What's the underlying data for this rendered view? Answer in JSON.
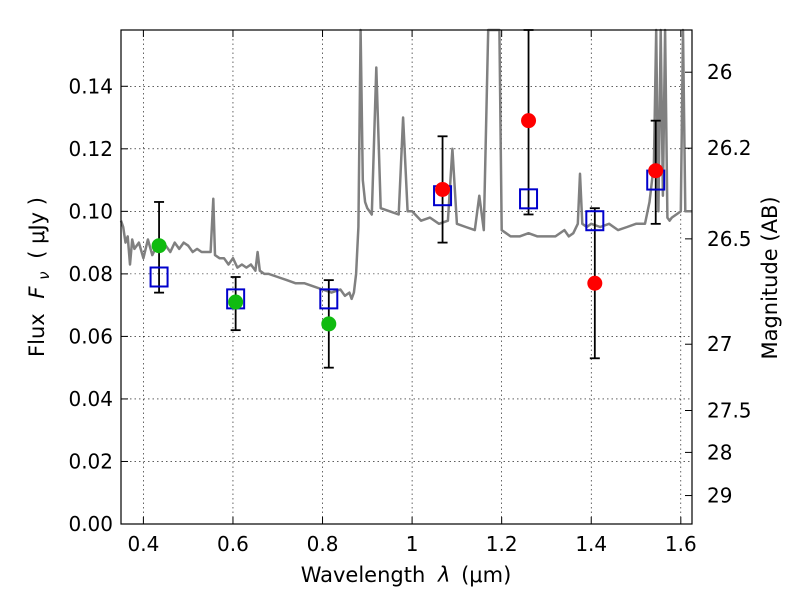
{
  "chart_data": {
    "type": "scatter",
    "xlabel_text": "Wavelength",
    "xlabel_symbol": "λ",
    "xlabel_unit": "(μm)",
    "ylabel_text": "Flux",
    "ylabel_symbol": "F",
    "ylabel_subscript": "ν",
    "ylabel_unit": "( μJy )",
    "y2label": "Magnitude (AB)",
    "xlim": [
      0.35,
      1.625
    ],
    "ylim": [
      0.0,
      0.158
    ],
    "grid": true,
    "x_ticks": [
      {
        "value": 0.4,
        "label": "0.4"
      },
      {
        "value": 0.6,
        "label": "0.6"
      },
      {
        "value": 0.8,
        "label": "0.8"
      },
      {
        "value": 1.0,
        "label": "1"
      },
      {
        "value": 1.2,
        "label": "1.2"
      },
      {
        "value": 1.4,
        "label": "1.4"
      },
      {
        "value": 1.6,
        "label": "1.6"
      }
    ],
    "y_ticks": [
      {
        "value": 0.0,
        "label": "0.00"
      },
      {
        "value": 0.02,
        "label": "0.02"
      },
      {
        "value": 0.04,
        "label": "0.04"
      },
      {
        "value": 0.06,
        "label": "0.06"
      },
      {
        "value": 0.08,
        "label": "0.08"
      },
      {
        "value": 0.1,
        "label": "0.10"
      },
      {
        "value": 0.12,
        "label": "0.12"
      },
      {
        "value": 0.14,
        "label": "0.14"
      }
    ],
    "y2_ticks": [
      {
        "label": "26",
        "flux": 0.1445
      },
      {
        "label": "26.2",
        "flux": 0.1202
      },
      {
        "label": "26.5",
        "flux": 0.0912
      },
      {
        "label": "27",
        "flux": 0.0575
      },
      {
        "label": "27.5",
        "flux": 0.0363
      },
      {
        "label": "28",
        "flux": 0.0229
      },
      {
        "label": "29",
        "flux": 0.0091
      }
    ],
    "series": [
      {
        "name": "model SED",
        "type": "line",
        "color": "#808080",
        "x": [
          0.35,
          0.355,
          0.36,
          0.365,
          0.37,
          0.375,
          0.38,
          0.39,
          0.4,
          0.41,
          0.42,
          0.43,
          0.44,
          0.45,
          0.46,
          0.47,
          0.48,
          0.49,
          0.5,
          0.51,
          0.52,
          0.53,
          0.54,
          0.55,
          0.556,
          0.56,
          0.57,
          0.58,
          0.59,
          0.6,
          0.61,
          0.62,
          0.63,
          0.64,
          0.65,
          0.655,
          0.66,
          0.67,
          0.68,
          0.7,
          0.72,
          0.74,
          0.76,
          0.78,
          0.8,
          0.82,
          0.84,
          0.85,
          0.86,
          0.865,
          0.87,
          0.875,
          0.88,
          0.885,
          0.89,
          0.895,
          0.9,
          0.91,
          0.92,
          0.93,
          0.95,
          0.97,
          0.98,
          0.99,
          1.0,
          1.02,
          1.04,
          1.06,
          1.08,
          1.09,
          1.1,
          1.12,
          1.14,
          1.15,
          1.16,
          1.17,
          1.175,
          1.18,
          1.185,
          1.19,
          1.195,
          1.2,
          1.21,
          1.22,
          1.24,
          1.26,
          1.28,
          1.3,
          1.32,
          1.34,
          1.35,
          1.36,
          1.37,
          1.375,
          1.38,
          1.39,
          1.4,
          1.42,
          1.44,
          1.46,
          1.48,
          1.5,
          1.52,
          1.53,
          1.54,
          1.545,
          1.55,
          1.555,
          1.56,
          1.565,
          1.57,
          1.575,
          1.58,
          1.59,
          1.6,
          1.605,
          1.61,
          1.615,
          1.625
        ],
        "y": [
          0.097,
          0.095,
          0.09,
          0.092,
          0.083,
          0.091,
          0.088,
          0.09,
          0.085,
          0.091,
          0.086,
          0.089,
          0.09,
          0.089,
          0.087,
          0.09,
          0.088,
          0.09,
          0.089,
          0.087,
          0.088,
          0.087,
          0.087,
          0.087,
          0.104,
          0.086,
          0.085,
          0.085,
          0.083,
          0.085,
          0.082,
          0.083,
          0.082,
          0.083,
          0.081,
          0.087,
          0.081,
          0.08,
          0.08,
          0.079,
          0.078,
          0.077,
          0.077,
          0.076,
          0.075,
          0.074,
          0.075,
          0.073,
          0.074,
          0.072,
          0.074,
          0.08,
          0.095,
          0.158,
          0.11,
          0.103,
          0.101,
          0.099,
          0.146,
          0.101,
          0.1,
          0.099,
          0.13,
          0.1,
          0.1,
          0.097,
          0.098,
          0.096,
          0.097,
          0.12,
          0.096,
          0.095,
          0.094,
          0.105,
          0.094,
          0.158,
          0.158,
          0.158,
          0.158,
          0.158,
          0.158,
          0.094,
          0.093,
          0.092,
          0.092,
          0.093,
          0.092,
          0.092,
          0.092,
          0.094,
          0.092,
          0.093,
          0.096,
          0.112,
          0.096,
          0.095,
          0.096,
          0.095,
          0.096,
          0.094,
          0.095,
          0.096,
          0.096,
          0.103,
          0.115,
          0.158,
          0.1,
          0.158,
          0.105,
          0.158,
          0.098,
          0.097,
          0.098,
          0.099,
          0.1,
          0.158,
          0.1,
          0.1,
          0.1
        ]
      },
      {
        "name": "optical photometry",
        "type": "circle",
        "color": "#10bb10",
        "points": [
          {
            "x": 0.435,
            "y": 0.089
          },
          {
            "x": 0.606,
            "y": 0.071
          },
          {
            "x": 0.814,
            "y": 0.064
          }
        ]
      },
      {
        "name": "near-IR photometry",
        "type": "circle",
        "color": "#ff0000",
        "points": [
          {
            "x": 1.068,
            "y": 0.107
          },
          {
            "x": 1.26,
            "y": 0.129
          },
          {
            "x": 1.408,
            "y": 0.077
          },
          {
            "x": 1.544,
            "y": 0.113
          }
        ]
      },
      {
        "name": "model fluxes",
        "type": "square",
        "color": "#0000cc",
        "points": [
          {
            "x": 0.435,
            "y": 0.079
          },
          {
            "x": 0.606,
            "y": 0.072
          },
          {
            "x": 0.814,
            "y": 0.072
          },
          {
            "x": 1.068,
            "y": 0.105
          },
          {
            "x": 1.26,
            "y": 0.104
          },
          {
            "x": 1.408,
            "y": 0.097
          },
          {
            "x": 1.544,
            "y": 0.11
          }
        ]
      },
      {
        "name": "errors",
        "type": "errorbar",
        "color": "#000000",
        "bars": [
          {
            "x": 0.435,
            "low": 0.074,
            "high": 0.103
          },
          {
            "x": 0.606,
            "low": 0.062,
            "high": 0.079
          },
          {
            "x": 0.814,
            "low": 0.05,
            "high": 0.078
          },
          {
            "x": 1.068,
            "low": 0.09,
            "high": 0.124
          },
          {
            "x": 1.26,
            "low": 0.099,
            "high": 0.158
          },
          {
            "x": 1.408,
            "low": 0.053,
            "high": 0.101
          },
          {
            "x": 1.544,
            "low": 0.096,
            "high": 0.129
          }
        ]
      }
    ]
  }
}
